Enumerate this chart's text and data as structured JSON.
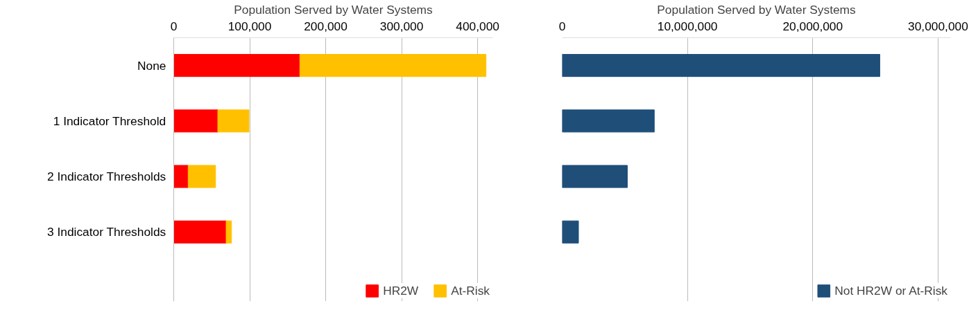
{
  "chart_data": [
    {
      "type": "bar",
      "orientation": "horizontal",
      "stacked": true,
      "xlabel": "Population Served by Water Systems",
      "categories": [
        "None",
        "1 Indicator Threshold",
        "2 Indicator Thresholds",
        "3 Indicator Thresholds"
      ],
      "series": [
        {
          "name": "HR2W",
          "color": "#ff0000",
          "values": [
            166000,
            58000,
            19000,
            69000
          ]
        },
        {
          "name": "At-Risk",
          "color": "#ffc000",
          "values": [
            245000,
            41000,
            36000,
            7000
          ]
        }
      ],
      "xlim": [
        0,
        420000
      ],
      "xticks": [
        {
          "value": 0,
          "label": "0"
        },
        {
          "value": 100000,
          "label": "100,000"
        },
        {
          "value": 200000,
          "label": "200,000"
        },
        {
          "value": 300000,
          "label": "300,000"
        },
        {
          "value": 400000,
          "label": "400,000"
        }
      ],
      "grid": "x",
      "legend": "bottom right"
    },
    {
      "type": "bar",
      "orientation": "horizontal",
      "xlabel": "Population Served by Water Systems",
      "categories": [
        null,
        null,
        null,
        null
      ],
      "tick_labels": "x",
      "series": [
        {
          "name": "Not HR2W or At-Risk",
          "color": "#1f4e79",
          "values": [
            25350000,
            7350000,
            5200000,
            1300000
          ]
        }
      ],
      "xlim": [
        0,
        31000000
      ],
      "xticks": [
        {
          "value": 0,
          "label": "0"
        },
        {
          "value": 10000000,
          "label": "10,000,000"
        },
        {
          "value": 20000000,
          "label": "20,000,000"
        },
        {
          "value": 30000000,
          "label": "30,000,000"
        }
      ],
      "grid": "x",
      "legend": "bottom right"
    }
  ]
}
